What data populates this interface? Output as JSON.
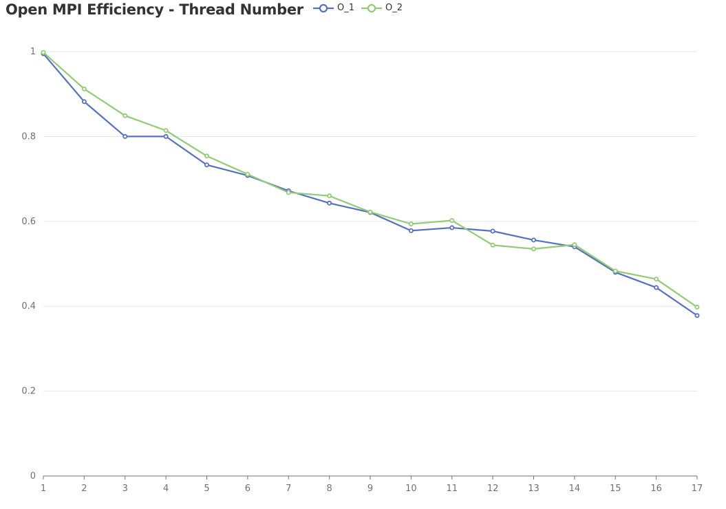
{
  "chart_data": {
    "type": "line",
    "title": "Open MPI Efficiency - Thread Number",
    "xlabel": "",
    "ylabel": "",
    "categories": [
      "1",
      "2",
      "3",
      "4",
      "5",
      "6",
      "7",
      "8",
      "9",
      "10",
      "11",
      "12",
      "13",
      "14",
      "15",
      "16",
      "17"
    ],
    "ylim": [
      0,
      1
    ],
    "yticks": [
      0,
      0.2,
      0.4,
      0.6,
      0.8,
      1
    ],
    "ytick_labels": [
      "0",
      "0.2",
      "0.4",
      "0.6",
      "0.8",
      "1"
    ],
    "grid": true,
    "legend_position": "top",
    "series": [
      {
        "name": "O_1",
        "color": "#5470c6",
        "values": [
          0.995,
          0.882,
          0.8,
          0.8,
          0.733,
          0.708,
          0.672,
          0.643,
          0.621,
          0.578,
          0.585,
          0.577,
          0.556,
          0.54,
          0.48,
          0.444,
          0.378
        ]
      },
      {
        "name": "O_2",
        "color": "#91cc75",
        "values": [
          0.998,
          0.912,
          0.849,
          0.814,
          0.754,
          0.711,
          0.668,
          0.66,
          0.622,
          0.594,
          0.602,
          0.544,
          0.535,
          0.545,
          0.483,
          0.464,
          0.398
        ]
      }
    ]
  }
}
